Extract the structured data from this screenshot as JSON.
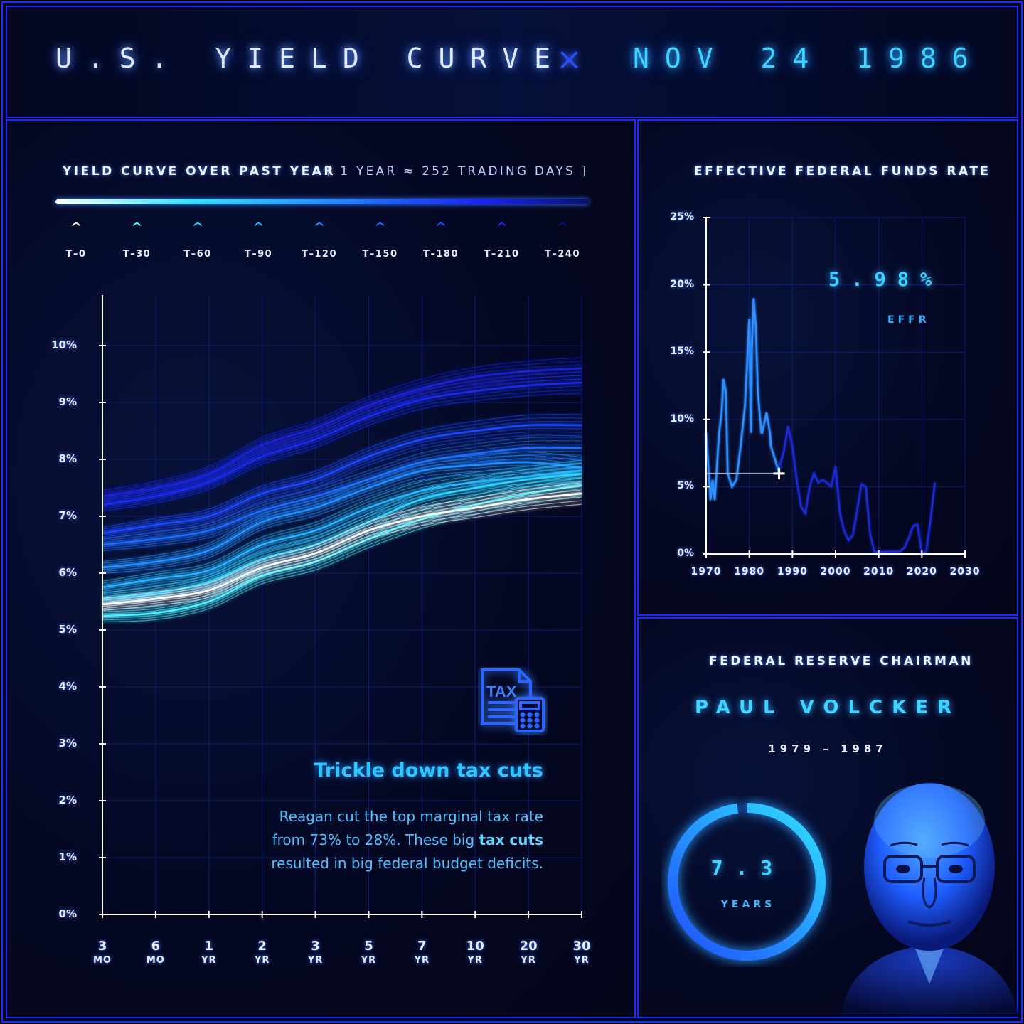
{
  "header": {
    "title": "U.S. YIELD CURVE",
    "separator": "×",
    "date": "NOV 24 1986"
  },
  "left_panel": {
    "title": "YIELD CURVE OVER PAST YEAR",
    "subtitle": "[ 1 YEAR ≈ 252 TRADING DAYS ]",
    "legend": [
      {
        "label": "T–0",
        "color": "#ffffff"
      },
      {
        "label": "T–30",
        "color": "#4ff0ff"
      },
      {
        "label": "T–60",
        "color": "#2fd6ff"
      },
      {
        "label": "T–90",
        "color": "#27b4ff"
      },
      {
        "label": "T–120",
        "color": "#228fff"
      },
      {
        "label": "T–150",
        "color": "#1f6bff"
      },
      {
        "label": "T–180",
        "color": "#1c49ff"
      },
      {
        "label": "T–210",
        "color": "#1a2cf0"
      },
      {
        "label": "T–240",
        "color": "#0d1270"
      }
    ],
    "annotation": {
      "icon": "tax-document-calculator-icon",
      "icon_text": "TAX",
      "title": "Trickle down tax cuts",
      "body_1": "Reagan cut the top marginal tax rate",
      "body_2": "from 73% to 28%. These big ",
      "body_bold": "tax cuts",
      "body_3": "resulted in big federal budget deficits."
    }
  },
  "chart_data": [
    {
      "type": "line",
      "title": "YIELD CURVE OVER PAST YEAR",
      "categories": [
        "3 MO",
        "6 MO",
        "1 YR",
        "2 YR",
        "3 YR",
        "5 YR",
        "7 YR",
        "10 YR",
        "20 YR",
        "30 YR"
      ],
      "x_ticks": [
        {
          "n": "3",
          "u": "MO"
        },
        {
          "n": "6",
          "u": "MO"
        },
        {
          "n": "1",
          "u": "YR"
        },
        {
          "n": "2",
          "u": "YR"
        },
        {
          "n": "3",
          "u": "YR"
        },
        {
          "n": "5",
          "u": "YR"
        },
        {
          "n": "7",
          "u": "YR"
        },
        {
          "n": "10",
          "u": "YR"
        },
        {
          "n": "20",
          "u": "YR"
        },
        {
          "n": "30",
          "u": "YR"
        }
      ],
      "y_ticks": [
        "0%",
        "1%",
        "2%",
        "3%",
        "4%",
        "5%",
        "6%",
        "7%",
        "8%",
        "9%",
        "10%"
      ],
      "ylim": [
        0,
        10.5
      ],
      "series": [
        {
          "name": "T–0",
          "color": "#ffffff",
          "values": [
            5.45,
            5.55,
            5.7,
            6.1,
            6.35,
            6.75,
            7.0,
            7.15,
            7.3,
            7.4
          ]
        },
        {
          "name": "T–30",
          "color": "#4ff0ff",
          "values": [
            5.25,
            5.3,
            5.5,
            5.95,
            6.2,
            6.6,
            6.95,
            7.2,
            7.4,
            7.55
          ]
        },
        {
          "name": "T–60",
          "color": "#2fd6ff",
          "values": [
            5.55,
            5.65,
            5.85,
            6.25,
            6.5,
            6.9,
            7.3,
            7.5,
            7.65,
            7.75
          ]
        },
        {
          "name": "T–90",
          "color": "#27b4ff",
          "values": [
            5.75,
            5.9,
            6.05,
            6.5,
            6.75,
            7.15,
            7.45,
            7.6,
            7.7,
            7.8
          ]
        },
        {
          "name": "T–120",
          "color": "#228fff",
          "values": [
            6.1,
            6.2,
            6.4,
            6.9,
            7.15,
            7.5,
            7.8,
            7.9,
            7.95,
            7.85
          ]
        },
        {
          "name": "T–150",
          "color": "#1f6bff",
          "values": [
            6.5,
            6.6,
            6.75,
            7.1,
            7.35,
            7.65,
            7.95,
            8.1,
            8.2,
            8.2
          ]
        },
        {
          "name": "T–180",
          "color": "#1c49ff",
          "values": [
            6.7,
            6.85,
            7.0,
            7.4,
            7.65,
            8.05,
            8.35,
            8.5,
            8.6,
            8.6
          ]
        },
        {
          "name": "T–210",
          "color": "#1a2cf0",
          "values": [
            7.2,
            7.35,
            7.6,
            8.05,
            8.35,
            8.75,
            9.05,
            9.2,
            9.3,
            9.35
          ]
        },
        {
          "name": "T–240",
          "color": "#1a22d8",
          "values": [
            7.35,
            7.5,
            7.75,
            8.25,
            8.55,
            8.95,
            9.25,
            9.45,
            9.55,
            9.6
          ]
        }
      ]
    },
    {
      "type": "line",
      "title": "EFFECTIVE FEDERAL FUNDS RATE",
      "x_ticks": [
        "1970",
        "1980",
        "1990",
        "2000",
        "2010",
        "2020",
        "2030"
      ],
      "y_ticks": [
        "0%",
        "5%",
        "10%",
        "15%",
        "20%",
        "25%"
      ],
      "xlim": [
        1970,
        2030
      ],
      "ylim": [
        0,
        25
      ],
      "current": {
        "x": 1986.9,
        "y": 5.98
      },
      "series": [
        {
          "name": "EFFR",
          "x": [
            1970,
            1971,
            1971.5,
            1972,
            1973,
            1973.6,
            1974,
            1974.6,
            1975,
            1976,
            1977,
            1978,
            1979,
            1980,
            1980.4,
            1980.6,
            1981,
            1981.5,
            1982,
            1982.8,
            1983,
            1984,
            1984.8,
            1985,
            1986,
            1986.9,
            1987,
            1988,
            1989,
            1990,
            1991,
            1992,
            1993,
            1994,
            1995,
            1996,
            1997,
            1998,
            1999,
            2000,
            2001,
            2002,
            2003,
            2004,
            2005,
            2006,
            2007,
            2008,
            2009,
            2015,
            2016,
            2017,
            2018,
            2019,
            2020,
            2021,
            2022,
            2023
          ],
          "y": [
            9.0,
            4.0,
            5.5,
            4.0,
            9.0,
            10.5,
            13.0,
            12.0,
            6.0,
            5.0,
            5.5,
            8.0,
            11.0,
            17.5,
            9.0,
            15.0,
            19.0,
            17.0,
            12.0,
            9.0,
            9.0,
            10.5,
            9.0,
            8.0,
            7.0,
            5.98,
            6.5,
            7.6,
            9.5,
            8.0,
            5.5,
            3.5,
            3.0,
            5.0,
            6.0,
            5.3,
            5.5,
            5.3,
            5.0,
            6.5,
            3.0,
            1.7,
            1.0,
            1.4,
            3.2,
            5.2,
            5.0,
            1.5,
            0.15,
            0.2,
            0.5,
            1.2,
            2.1,
            2.2,
            0.1,
            0.1,
            2.5,
            5.3
          ]
        }
      ]
    }
  ],
  "right_top": {
    "title": "EFFECTIVE FEDERAL FUNDS RATE",
    "value": "5.98%",
    "value_label": "EFFR"
  },
  "right_bottom": {
    "title": "FEDERAL RESERVE CHAIRMAN",
    "name": "PAUL VOLCKER",
    "term": "1979 – 1987",
    "tenure_value": "7.3",
    "tenure_unit": "YEARS",
    "tenure_progress": 0.98,
    "portrait": "chairman-portrait"
  }
}
